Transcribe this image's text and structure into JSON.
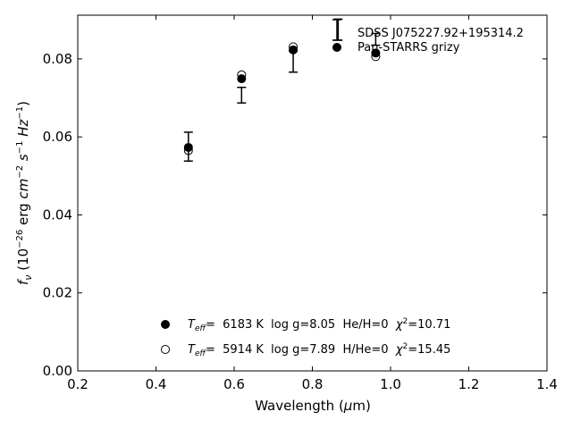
{
  "chart_data": {
    "type": "scatter",
    "xlabel": "Wavelength (μm)",
    "ylabel": "f_ν (10^-26 erg cm^-2 s^-1 Hz^-1)",
    "xlim": [
      0.2,
      1.4
    ],
    "ylim": [
      0.0,
      0.0912
    ],
    "xticks": [
      0.2,
      0.4,
      0.6,
      0.8,
      1.0,
      1.2,
      1.4
    ],
    "xtick_labels": [
      "0.2",
      "0.4",
      "0.6",
      "0.8",
      "1.0",
      "1.2",
      "1.4"
    ],
    "yticks": [
      0.0,
      0.02,
      0.04,
      0.06,
      0.08
    ],
    "ytick_labels": [
      "0.00",
      "0.02",
      "0.04",
      "0.06",
      "0.08"
    ],
    "grid": false,
    "legend_position": "top-right",
    "series": [
      {
        "name": "SDSS J075227.92+195314.2",
        "marker": "errorbar",
        "x": [
          0.483,
          0.619,
          0.751,
          0.866,
          0.962
        ],
        "y": [
          0.0575,
          0.0707,
          0.0793,
          0.0875,
          0.085
        ],
        "yerr": [
          0.0037,
          0.002,
          0.0027,
          0.0027,
          0.0015
        ]
      },
      {
        "name": "Pan-STARRS grizy",
        "marker": "filled-circle",
        "x": [
          0.483,
          0.619,
          0.751,
          0.962
        ],
        "y": [
          0.0573,
          0.0749,
          0.0823,
          0.0815
        ]
      },
      {
        "name": "",
        "marker": "open-circle",
        "x": [
          0.483,
          0.619,
          0.751,
          0.962
        ],
        "y": [
          0.0565,
          0.0759,
          0.0831,
          0.0806
        ]
      }
    ],
    "annotations": [
      {
        "marker": "filled-circle",
        "teff_label": "T",
        "teff_sub": "eff",
        "teff_value": "=  6183 K  log g=8.05  He/H=0  ",
        "chi_label": "χ",
        "chi_sup": "2",
        "chi_value": "=10.71"
      },
      {
        "marker": "open-circle",
        "teff_label": "T",
        "teff_sub": "eff",
        "teff_value": "=  5914 K  log g=7.89  H/He=0  ",
        "chi_label": "χ",
        "chi_sup": "2",
        "chi_value": "=15.45"
      }
    ]
  }
}
